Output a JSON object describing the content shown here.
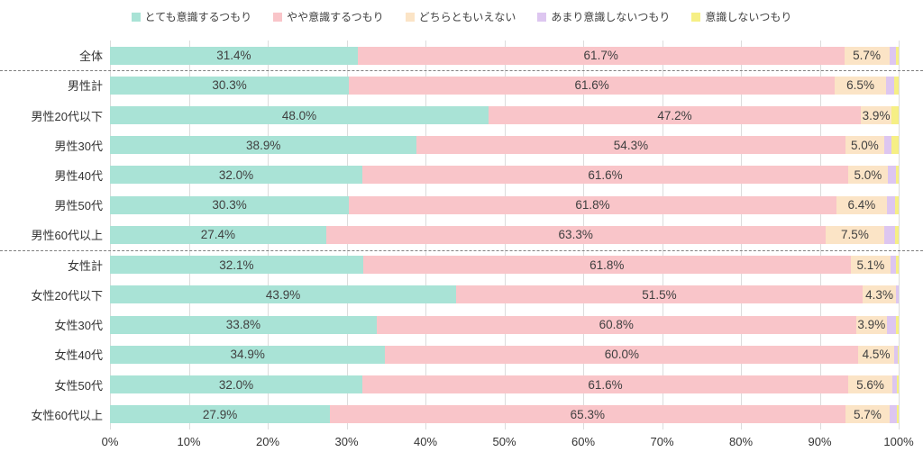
{
  "legend": {
    "items": [
      {
        "label": "とても意識するつもり",
        "color": "#a9e3d6"
      },
      {
        "label": "やや意識するつもり",
        "color": "#f9c5c9"
      },
      {
        "label": "どちらともいえない",
        "color": "#fbe4c6"
      },
      {
        "label": "あまり意識しないつもり",
        "color": "#ddc6f0"
      },
      {
        "label": "意識しないつもり",
        "color": "#f6ef85"
      }
    ]
  },
  "chart_data": {
    "type": "bar",
    "orientation": "horizontal",
    "stacked": true,
    "unit": "%",
    "x_range": [
      0,
      100
    ],
    "grid": true,
    "legend_position": "top",
    "categories": [
      "全体",
      "男性計",
      "男性20代以下",
      "男性30代",
      "男性40代",
      "男性50代",
      "男性60代以上",
      "女性計",
      "女性20代以下",
      "女性30代",
      "女性40代",
      "女性50代",
      "女性60代以上"
    ],
    "separator_after_rows": [
      0,
      6
    ],
    "series": [
      {
        "name": "とても意識するつもり",
        "color": "#a9e3d6",
        "show_labels": true,
        "values": [
          31.4,
          30.3,
          48.0,
          38.9,
          32.0,
          30.3,
          27.4,
          32.1,
          43.9,
          33.8,
          34.9,
          32.0,
          27.9
        ]
      },
      {
        "name": "やや意識するつもり",
        "color": "#f9c5c9",
        "show_labels": true,
        "values": [
          61.7,
          61.6,
          47.2,
          54.3,
          61.6,
          61.8,
          63.3,
          61.8,
          51.5,
          60.8,
          60.0,
          61.6,
          65.3
        ]
      },
      {
        "name": "どちらともいえない",
        "color": "#fbe4c6",
        "show_labels": true,
        "values": [
          5.7,
          6.5,
          3.9,
          5.0,
          5.0,
          6.4,
          7.5,
          5.1,
          4.3,
          3.9,
          4.5,
          5.6,
          5.7
        ]
      },
      {
        "name": "あまり意識しないつもり",
        "color": "#ddc6f0",
        "show_labels": false,
        "values": [
          0.8,
          1.0,
          0.0,
          0.9,
          1.0,
          1.0,
          1.3,
          0.7,
          0.3,
          1.1,
          0.5,
          0.6,
          0.9
        ]
      },
      {
        "name": "意識しないつもり",
        "color": "#f6ef85",
        "show_labels": false,
        "values": [
          0.4,
          0.6,
          0.9,
          0.9,
          0.4,
          0.5,
          0.5,
          0.3,
          0.0,
          0.4,
          0.1,
          0.2,
          0.2
        ]
      }
    ],
    "x_axis": {
      "ticks": [
        "0%",
        "10%",
        "20%",
        "30%",
        "40%",
        "50%",
        "60%",
        "70%",
        "80%",
        "90%",
        "100%"
      ]
    }
  }
}
